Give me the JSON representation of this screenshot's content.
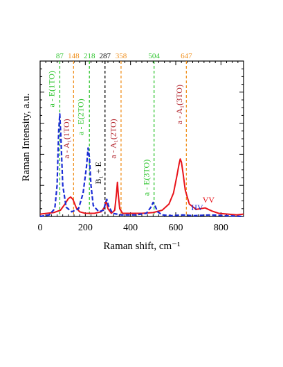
{
  "chart_data": {
    "type": "line",
    "xlabel": "Raman shift, cm⁻¹",
    "ylabel": "Raman Intensity, a.u.",
    "xlim": [
      0,
      900
    ],
    "ylim": [
      0,
      1.0
    ],
    "x_ticks": [
      0,
      200,
      400,
      600,
      800
    ],
    "x_tick_labels": [
      "0",
      "200",
      "400",
      "600",
      "800"
    ],
    "y_tick_labels_visible": false,
    "grid": false,
    "legend": "none",
    "series": [
      {
        "name": "VV",
        "color": "#e8131a",
        "style": "solid",
        "x": [
          0,
          60,
          90,
          110,
          125,
          135,
          145,
          160,
          175,
          200,
          240,
          270,
          285,
          292,
          300,
          315,
          330,
          338,
          342,
          346,
          352,
          365,
          400,
          450,
          500,
          540,
          570,
          590,
          605,
          615,
          620,
          625,
          632,
          642,
          660,
          690,
          730,
          760,
          790,
          830,
          870,
          900
        ],
        "y": [
          0.015,
          0.025,
          0.04,
          0.08,
          0.115,
          0.125,
          0.11,
          0.055,
          0.03,
          0.02,
          0.02,
          0.03,
          0.06,
          0.1,
          0.05,
          0.02,
          0.04,
          0.15,
          0.22,
          0.14,
          0.05,
          0.02,
          0.02,
          0.02,
          0.025,
          0.04,
          0.08,
          0.15,
          0.26,
          0.34,
          0.37,
          0.35,
          0.28,
          0.17,
          0.08,
          0.045,
          0.055,
          0.035,
          0.02,
          0.015,
          0.01,
          0.015
        ]
      },
      {
        "name": "HV",
        "color": "#1a2bd6",
        "style": "dashed",
        "x": [
          0,
          40,
          65,
          75,
          82,
          87,
          92,
          100,
          115,
          140,
          170,
          190,
          205,
          212,
          218,
          225,
          235,
          260,
          280,
          290,
          295,
          302,
          320,
          360,
          420,
          470,
          490,
          500,
          508,
          520,
          540,
          580,
          630,
          680,
          750,
          820,
          900
        ],
        "y": [
          0.0,
          0.01,
          0.05,
          0.2,
          0.55,
          0.66,
          0.5,
          0.2,
          0.06,
          0.03,
          0.05,
          0.15,
          0.32,
          0.44,
          0.38,
          0.2,
          0.07,
          0.03,
          0.04,
          0.09,
          0.11,
          0.07,
          0.02,
          0.01,
          0.01,
          0.02,
          0.06,
          0.09,
          0.07,
          0.03,
          0.01,
          0.005,
          0.01,
          0.005,
          0.01,
          0.005,
          0.0
        ]
      }
    ],
    "series_labels": [
      {
        "text": "VV",
        "color": "#e8131a",
        "x": 745,
        "y": 0.09
      },
      {
        "text": "HV",
        "color": "#1a2bd6",
        "x": 695,
        "y": 0.04
      }
    ],
    "markers": [
      {
        "x": 87,
        "label": "87",
        "color": "#2ec42e"
      },
      {
        "x": 148,
        "label": "148",
        "color": "#f0901e"
      },
      {
        "x": 218,
        "label": "218",
        "color": "#2ec42e"
      },
      {
        "x": 287,
        "label": "287",
        "color": "#000000"
      },
      {
        "x": 358,
        "label": "358",
        "color": "#f0901e"
      },
      {
        "x": 504,
        "label": "504",
        "color": "#2ec42e"
      },
      {
        "x": 647,
        "label": "647",
        "color": "#f0901e"
      }
    ],
    "annotations": [
      {
        "text": "a - E(1TO)",
        "color": "#2ec42e",
        "x": 62,
        "y": 0.82
      },
      {
        "text": "a - A₁(1TO)",
        "color": "#b2222a",
        "x": 128,
        "y": 0.5
      },
      {
        "text": "a - E(2TO)",
        "color": "#2ec42e",
        "x": 192,
        "y": 0.64
      },
      {
        "text": "B₁ + E",
        "color": "#000000",
        "x": 270,
        "y": 0.28
      },
      {
        "text": "a - A₁(2TO)",
        "color": "#b2222a",
        "x": 335,
        "y": 0.5
      },
      {
        "text": "a - E(3TO)",
        "color": "#2ec42e",
        "x": 482,
        "y": 0.25
      },
      {
        "text": "a - A₁(3TO)",
        "color": "#b2222a",
        "x": 627,
        "y": 0.72
      }
    ]
  }
}
